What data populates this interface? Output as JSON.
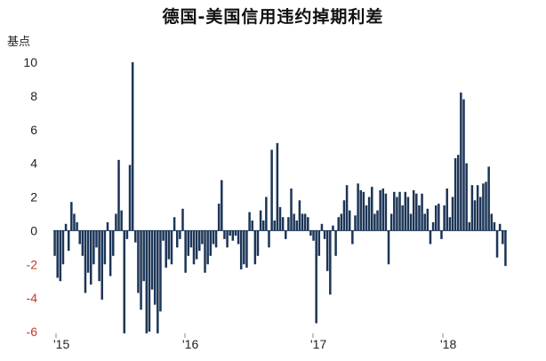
{
  "chart_data": {
    "type": "bar",
    "title": "德国-美国信用违约掉期利差",
    "ylabel": "基点",
    "ylim": [
      -6,
      10
    ],
    "yticks": [
      -6,
      -4,
      -2,
      0,
      2,
      4,
      6,
      8,
      10
    ],
    "xticks": [
      "'15",
      "'16",
      "'17",
      "'18"
    ],
    "bar_color": "#1c3557",
    "negative_tick_color": "#c0392b",
    "positive_tick_color": "#222222",
    "values": [
      -1.5,
      -2.8,
      -3.0,
      -2.0,
      0.4,
      -1.2,
      1.7,
      1.0,
      0.5,
      -0.8,
      -1.5,
      -3.7,
      -2.5,
      -3.2,
      -2.0,
      -1.0,
      -3.0,
      -4.1,
      -2.0,
      0.5,
      -2.7,
      -1.5,
      1.0,
      4.2,
      1.2,
      -6.1,
      -0.5,
      3.9,
      10.0,
      -0.7,
      -3.7,
      -4.7,
      -3.0,
      -6.1,
      -6.0,
      -3.5,
      -4.4,
      -6.1,
      -4.8,
      -0.6,
      -2.2,
      -1.7,
      -2.0,
      0.8,
      -1.0,
      -0.5,
      1.3,
      -2.5,
      -1.5,
      -1.0,
      -2.0,
      -1.7,
      -1.2,
      -0.8,
      -2.5,
      -2.0,
      -1.5,
      -0.8,
      -1.0,
      1.6,
      3.0,
      -0.5,
      -1.0,
      -0.3,
      -0.6,
      -0.3,
      -0.8,
      -2.3,
      -2.0,
      -2.2,
      1.1,
      0.6,
      -2.0,
      -1.5,
      1.2,
      0.6,
      2.0,
      -1.0,
      4.8,
      0.6,
      5.2,
      1.4,
      0.8,
      -0.5,
      0.8,
      2.5,
      1.0,
      0.6,
      1.8,
      1.0,
      1.0,
      0.8,
      -0.3,
      -0.6,
      -5.5,
      -1.5,
      0.4,
      -0.5,
      -2.4,
      -3.8,
      0.3,
      -1.5,
      0.8,
      1.0,
      1.8,
      2.7,
      1.2,
      -0.8,
      0.9,
      2.8,
      2.4,
      2.3,
      1.5,
      2.0,
      2.6,
      1.0,
      1.2,
      2.4,
      2.5,
      2.2,
      -2.0,
      1.0,
      2.3,
      2.0,
      2.3,
      1.5,
      2.3,
      2.0,
      1.0,
      2.4,
      2.2,
      1.5,
      2.2,
      1.0,
      1.3,
      -0.8,
      0.5,
      1.5,
      1.6,
      -0.5,
      1.5,
      2.5,
      0.8,
      2.0,
      4.3,
      4.5,
      8.2,
      7.8,
      4.0,
      0.5,
      2.7,
      1.8,
      2.7,
      2.0,
      2.8,
      2.9,
      3.8,
      1.0,
      0.5,
      -1.6,
      0.4,
      -0.8,
      -2.1
    ]
  }
}
